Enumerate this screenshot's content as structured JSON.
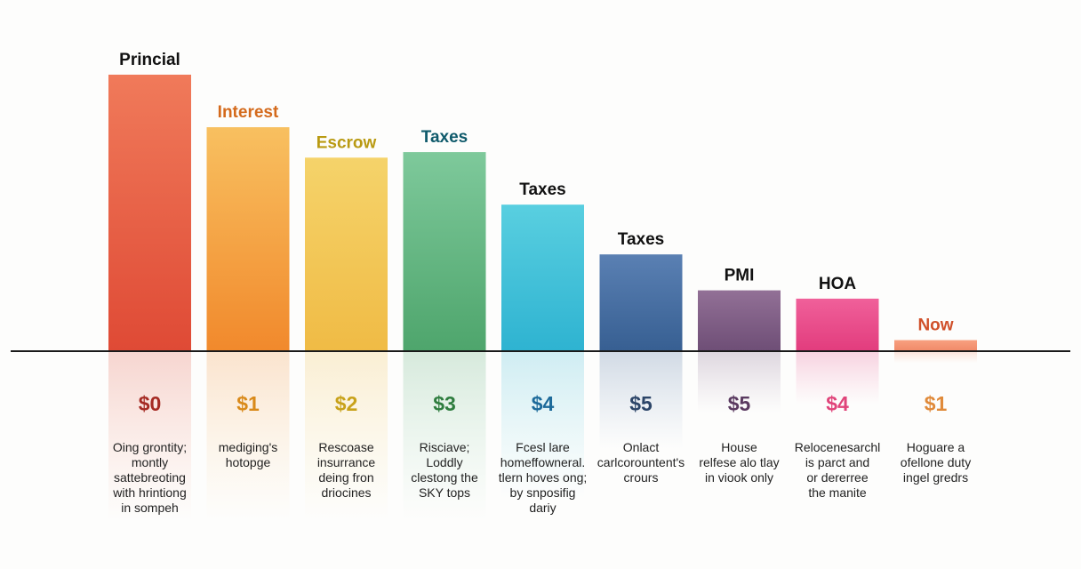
{
  "chart_data": {
    "type": "bar",
    "title": "",
    "xlabel": "",
    "ylabel": "",
    "grid": false,
    "ylim": [
      0,
      100
    ],
    "categories": [
      "Princial",
      "Interest",
      "Escrow",
      "Taxes",
      "Taxes",
      "Taxes",
      "PMI",
      "HOA",
      "Now"
    ],
    "values": [
      100,
      81,
      70,
      72,
      53,
      35,
      22,
      19,
      4
    ],
    "label_colors": [
      "#111111",
      "#d46a1c",
      "#b99a12",
      "#0f5a6b",
      "#111111",
      "#111111",
      "#111111",
      "#111111",
      "#d0502a"
    ],
    "bar_colors": [
      [
        "#f07a5a",
        "#df4a35"
      ],
      [
        "#f8c060",
        "#f1892c"
      ],
      [
        "#f5d36a",
        "#f0bb45"
      ],
      [
        "#7ec99b",
        "#4ea56c"
      ],
      [
        "#59cfe0",
        "#2eb3d1"
      ],
      [
        "#5a80b3",
        "#375f92"
      ],
      [
        "#927096",
        "#6e4e76"
      ],
      [
        "#f0609a",
        "#e23c7d"
      ],
      [
        "#f8a080",
        "#f08968"
      ]
    ],
    "amounts": [
      "$0",
      "$1",
      "$2",
      "$3",
      "$4",
      "$5",
      "$5",
      "$4",
      "$1"
    ],
    "amount_colors": [
      "#a52a23",
      "#d98a1a",
      "#c8a21a",
      "#2f7d3f",
      "#1d6a9a",
      "#2c4568",
      "#5a3a60",
      "#e0447a",
      "#e08a3a"
    ],
    "descriptions": [
      [
        "Oing grontity;",
        "montly",
        "sattebreoting",
        "with hrintiong",
        "in sompeh"
      ],
      [
        "mediging's",
        "hotopge"
      ],
      [
        "Rescoase",
        "insurrance",
        "deing fron",
        "driocines"
      ],
      [
        "Risciave;",
        "Loddly",
        "clestong the",
        "SKY tops"
      ],
      [
        "Fcesl lare",
        "homeffowneral.",
        "tlern hoves ong;",
        "by snposifig",
        "dariy"
      ],
      [
        "Onlact",
        "carlcorountent's",
        "crours"
      ],
      [
        "House",
        "relfese alo tlay",
        "in viook only"
      ],
      [
        "Relocenesarchl",
        "is parct and",
        "or dererree",
        "the manite"
      ],
      [
        "Hoguare a",
        "ofellone duty",
        "ingel gredrs"
      ]
    ]
  }
}
